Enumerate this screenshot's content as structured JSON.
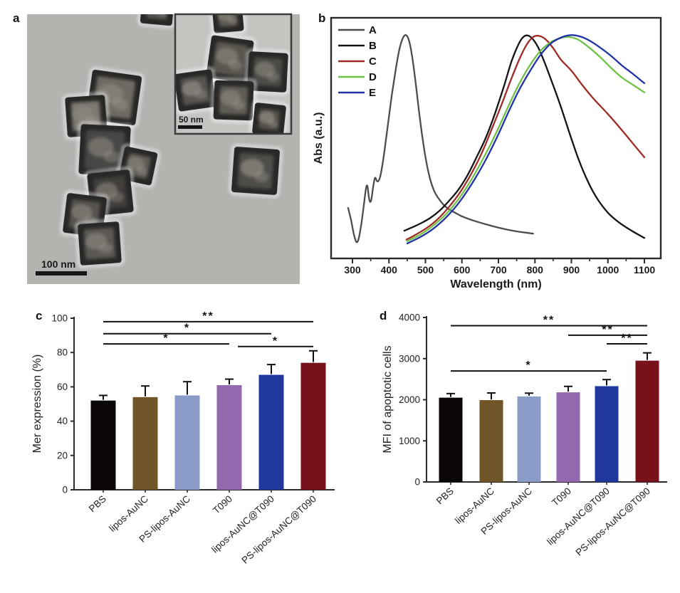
{
  "panels": {
    "a": {
      "label": "a",
      "scalebar_main": "100 nm",
      "scalebar_inset": "50 nm"
    },
    "b": {
      "label": "b"
    },
    "c": {
      "label": "c"
    },
    "d": {
      "label": "d"
    }
  },
  "chart_data": [
    {
      "type": "line",
      "panel": "b",
      "title": "",
      "xlabel": "Wavelength (nm)",
      "ylabel": "Abs (a.u.)",
      "xlim": [
        245,
        1145
      ],
      "ylim": [
        0,
        1
      ],
      "xticks": [
        300,
        400,
        500,
        600,
        700,
        800,
        900,
        1000,
        1100
      ],
      "grid": false,
      "legend_position": "top-left",
      "series": [
        {
          "name": "A",
          "color": "#4d4d4d",
          "points": [
            [
              288,
              0.21
            ],
            [
              296,
              0.16
            ],
            [
              304,
              0.1
            ],
            [
              311,
              0.068
            ],
            [
              317,
              0.082
            ],
            [
              324,
              0.14
            ],
            [
              331,
              0.22
            ],
            [
              337,
              0.29
            ],
            [
              341,
              0.3
            ],
            [
              346,
              0.245
            ],
            [
              351,
              0.24
            ],
            [
              357,
              0.3
            ],
            [
              362,
              0.335
            ],
            [
              368,
              0.32
            ],
            [
              374,
              0.33
            ],
            [
              380,
              0.37
            ],
            [
              388,
              0.45
            ],
            [
              398,
              0.565
            ],
            [
              408,
              0.68
            ],
            [
              418,
              0.78
            ],
            [
              428,
              0.865
            ],
            [
              438,
              0.915
            ],
            [
              447,
              0.928
            ],
            [
              455,
              0.905
            ],
            [
              463,
              0.845
            ],
            [
              472,
              0.745
            ],
            [
              482,
              0.615
            ],
            [
              492,
              0.5
            ],
            [
              502,
              0.405
            ],
            [
              512,
              0.335
            ],
            [
              524,
              0.28
            ],
            [
              538,
              0.245
            ],
            [
              555,
              0.215
            ],
            [
              575,
              0.195
            ],
            [
              600,
              0.175
            ],
            [
              630,
              0.158
            ],
            [
              665,
              0.142
            ],
            [
              700,
              0.128
            ],
            [
              740,
              0.115
            ],
            [
              775,
              0.107
            ],
            [
              795,
              0.103
            ]
          ]
        },
        {
          "name": "B",
          "color": "#141414",
          "points": [
            [
              442,
              0.115
            ],
            [
              465,
              0.13
            ],
            [
              490,
              0.148
            ],
            [
              515,
              0.17
            ],
            [
              540,
              0.2
            ],
            [
              565,
              0.24
            ],
            [
              590,
              0.285
            ],
            [
              615,
              0.345
            ],
            [
              640,
              0.42
            ],
            [
              665,
              0.5
            ],
            [
              690,
              0.6
            ],
            [
              715,
              0.715
            ],
            [
              735,
              0.815
            ],
            [
              752,
              0.88
            ],
            [
              765,
              0.915
            ],
            [
              778,
              0.927
            ],
            [
              792,
              0.915
            ],
            [
              808,
              0.88
            ],
            [
              825,
              0.82
            ],
            [
              845,
              0.74
            ],
            [
              870,
              0.635
            ],
            [
              895,
              0.52
            ],
            [
              920,
              0.41
            ],
            [
              945,
              0.32
            ],
            [
              970,
              0.25
            ],
            [
              1000,
              0.19
            ],
            [
              1030,
              0.15
            ],
            [
              1065,
              0.115
            ],
            [
              1100,
              0.085
            ]
          ]
        },
        {
          "name": "C",
          "color": "#9e2b24",
          "points": [
            [
              448,
              0.078
            ],
            [
              475,
              0.1
            ],
            [
              505,
              0.128
            ],
            [
              535,
              0.165
            ],
            [
              565,
              0.215
            ],
            [
              595,
              0.275
            ],
            [
              625,
              0.35
            ],
            [
              655,
              0.44
            ],
            [
              685,
              0.55
            ],
            [
              710,
              0.645
            ],
            [
              735,
              0.745
            ],
            [
              758,
              0.83
            ],
            [
              778,
              0.89
            ],
            [
              795,
              0.92
            ],
            [
              810,
              0.925
            ],
            [
              828,
              0.912
            ],
            [
              848,
              0.878
            ],
            [
              872,
              0.825
            ],
            [
              900,
              0.78
            ],
            [
              930,
              0.72
            ],
            [
              960,
              0.665
            ],
            [
              1000,
              0.6
            ],
            [
              1040,
              0.53
            ],
            [
              1070,
              0.475
            ],
            [
              1100,
              0.42
            ]
          ]
        },
        {
          "name": "D",
          "color": "#6fc146",
          "points": [
            [
              450,
              0.072
            ],
            [
              485,
              0.098
            ],
            [
              520,
              0.135
            ],
            [
              555,
              0.182
            ],
            [
              590,
              0.245
            ],
            [
              625,
              0.325
            ],
            [
              660,
              0.42
            ],
            [
              695,
              0.525
            ],
            [
              725,
              0.625
            ],
            [
              755,
              0.72
            ],
            [
              785,
              0.8
            ],
            [
              815,
              0.862
            ],
            [
              845,
              0.9
            ],
            [
              875,
              0.918
            ],
            [
              895,
              0.92
            ],
            [
              920,
              0.908
            ],
            [
              950,
              0.875
            ],
            [
              980,
              0.835
            ],
            [
              1010,
              0.79
            ],
            [
              1040,
              0.75
            ],
            [
              1070,
              0.72
            ],
            [
              1100,
              0.69
            ]
          ]
        },
        {
          "name": "E",
          "color": "#2133a6",
          "points": [
            [
              450,
              0.062
            ],
            [
              485,
              0.088
            ],
            [
              520,
              0.122
            ],
            [
              555,
              0.168
            ],
            [
              590,
              0.228
            ],
            [
              625,
              0.305
            ],
            [
              660,
              0.395
            ],
            [
              695,
              0.5
            ],
            [
              725,
              0.6
            ],
            [
              755,
              0.695
            ],
            [
              785,
              0.775
            ],
            [
              815,
              0.845
            ],
            [
              845,
              0.895
            ],
            [
              875,
              0.92
            ],
            [
              900,
              0.928
            ],
            [
              925,
              0.922
            ],
            [
              950,
              0.905
            ],
            [
              980,
              0.875
            ],
            [
              1010,
              0.84
            ],
            [
              1040,
              0.8
            ],
            [
              1070,
              0.765
            ],
            [
              1100,
              0.728
            ]
          ]
        }
      ]
    },
    {
      "type": "bar",
      "panel": "c",
      "title": "",
      "xlabel": "",
      "ylabel": "Mer expression (%)",
      "ylim": [
        0,
        100
      ],
      "yticks": [
        0,
        20,
        40,
        60,
        80,
        100
      ],
      "grid": false,
      "categories": [
        "PBS",
        "lipos-AuNC",
        "PS-lipos-AuNC",
        "T090",
        "lipos-AuNC@T090",
        "PS-lipos-AuNC@T090"
      ],
      "values": [
        52,
        54,
        55,
        61,
        67,
        74
      ],
      "errors": [
        3,
        6.5,
        8,
        3.5,
        6,
        7
      ],
      "bar_colors": [
        "#0b0609",
        "#6f5527",
        "#8c9cc9",
        "#9468ae",
        "#20389d",
        "#77121b"
      ],
      "sig_lines": [
        {
          "from": 0,
          "to": 5,
          "y": 98,
          "label": "**"
        },
        {
          "from": 0,
          "to": 4,
          "y": 91,
          "label": "*"
        },
        {
          "from": 0,
          "to": 3,
          "y": 85,
          "label": "*"
        },
        {
          "from": 3,
          "to": 5,
          "y": 83.5,
          "label": "*"
        }
      ]
    },
    {
      "type": "bar",
      "panel": "d",
      "title": "",
      "xlabel": "",
      "ylabel": "MFI of  apoptotic cells",
      "ylim": [
        0,
        4000
      ],
      "yticks": [
        0,
        1000,
        2000,
        3000,
        4000
      ],
      "grid": false,
      "categories": [
        "PBS",
        "lipos-AuNC",
        "PS-lipos-AuNC",
        "T090",
        "lipos-AuNC@T090",
        "PS-lipos-AuNC@T090"
      ],
      "values": [
        2050,
        1990,
        2080,
        2180,
        2330,
        2950
      ],
      "errors": [
        100,
        175,
        80,
        145,
        160,
        190
      ],
      "bar_colors": [
        "#0b0609",
        "#6f5527",
        "#8c9cc9",
        "#9468ae",
        "#20389d",
        "#77121b"
      ],
      "sig_lines": [
        {
          "from": 0,
          "to": 5,
          "y": 3800,
          "label": "**"
        },
        {
          "from": 3,
          "to": 5,
          "y": 3570,
          "label": "**"
        },
        {
          "from": 4,
          "to": 5,
          "y": 3360,
          "label": "**"
        },
        {
          "from": 0,
          "to": 4,
          "y": 2700,
          "label": "*"
        }
      ]
    }
  ],
  "colors": {
    "axis": "#2b2b2b",
    "tem_background": "#b4b3b0",
    "tem_inset_background": "#c5c4c1",
    "cube_dark": "#2a2826"
  }
}
